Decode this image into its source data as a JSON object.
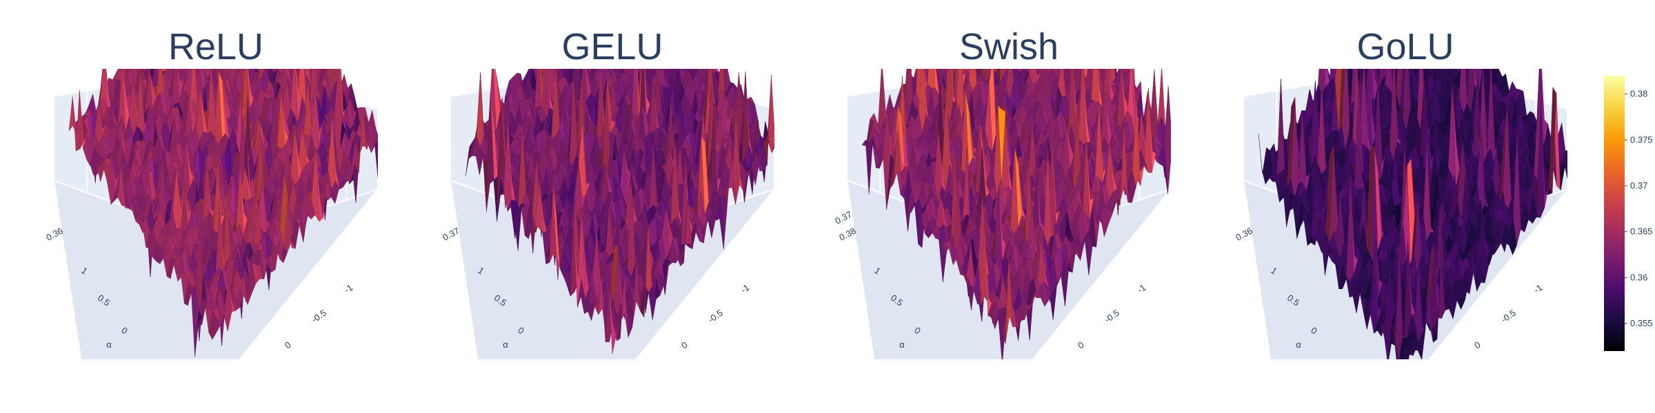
{
  "chart_data": {
    "type": "surface",
    "colorscale": "inferno",
    "colorbar": {
      "ticks": [
        "0.355",
        "0.36",
        "0.365",
        "0.37",
        "0.375",
        "0.38"
      ],
      "range": [
        0.352,
        0.382
      ]
    },
    "panels": [
      {
        "title": "ReLU",
        "z_tick_labels": [
          "0.36"
        ],
        "left_axis_ticks": [
          "1",
          "0.5",
          "0"
        ],
        "left_axis_label": "α",
        "right_axis_ticks": [
          "-1",
          "-0.5",
          "0"
        ],
        "z_min": 0.352,
        "z_max": 0.378,
        "z_mean": 0.364,
        "seed": 11
      },
      {
        "title": "GELU",
        "z_tick_labels": [
          "0.37"
        ],
        "left_axis_ticks": [
          "1",
          "0.5",
          "0"
        ],
        "left_axis_label": "α",
        "right_axis_ticks": [
          "-1",
          "-0.5",
          "0"
        ],
        "z_min": 0.353,
        "z_max": 0.379,
        "z_mean": 0.362,
        "seed": 23
      },
      {
        "title": "Swish",
        "z_tick_labels": [
          "0.38",
          "0.37"
        ],
        "left_axis_ticks": [
          "1",
          "0.5",
          "0"
        ],
        "left_axis_label": "α",
        "right_axis_ticks": [
          "-1",
          "-0.5",
          "0"
        ],
        "z_min": 0.353,
        "z_max": 0.381,
        "z_mean": 0.363,
        "seed": 37
      },
      {
        "title": "GoLU",
        "z_tick_labels": [
          "0.36"
        ],
        "left_axis_ticks": [
          "1",
          "0.5",
          "0"
        ],
        "left_axis_label": "α",
        "right_axis_ticks": [
          "-1",
          "-0.5",
          "0"
        ],
        "z_min": 0.352,
        "z_max": 0.378,
        "z_mean": 0.357,
        "seed": 53
      }
    ]
  }
}
